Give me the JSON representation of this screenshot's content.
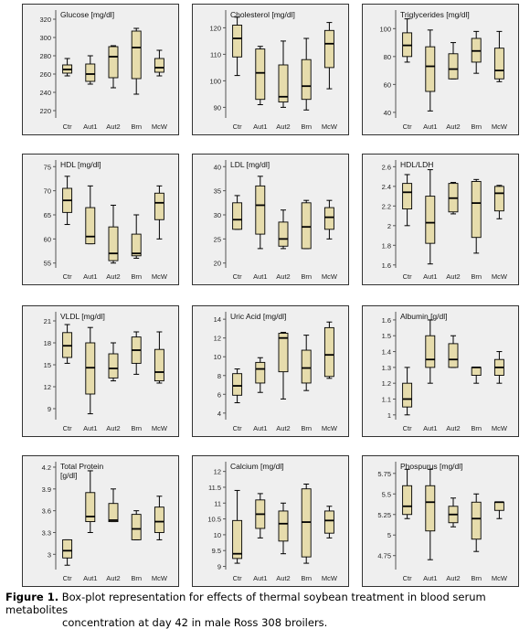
{
  "figure": {
    "caption_label": "Figure 1.",
    "caption_text_1": "Box-plot representation for effects of thermal soybean treatment in blood serum metabolites",
    "caption_text_2": "concentration at day 42 in male Ross 308 broilers."
  },
  "colors": {
    "box_fill": "#e6dcac",
    "panel_bg": "#efefef",
    "line": "#000000"
  },
  "chart_data": [
    {
      "type": "box",
      "title": "Glucose [mg/dl]",
      "categories": [
        "Ctr",
        "Aut1",
        "Aut2",
        "Brn",
        "McW"
      ],
      "yticks": [
        220,
        240,
        260,
        280,
        300,
        320
      ],
      "ylim": [
        212,
        328
      ],
      "boxes": [
        {
          "min": 258,
          "q1": 261,
          "median": 265,
          "q3": 270,
          "max": 277
        },
        {
          "min": 249,
          "q1": 252,
          "median": 260,
          "q3": 271,
          "max": 280
        },
        {
          "min": 245,
          "q1": 256,
          "median": 279,
          "q3": 290,
          "max": 291
        },
        {
          "min": 238,
          "q1": 255,
          "median": 289,
          "q3": 307,
          "max": 310
        },
        {
          "min": 258,
          "q1": 262,
          "median": 267,
          "q3": 277,
          "max": 286
        }
      ]
    },
    {
      "type": "box",
      "title": "Cholesterol [mg/dl]",
      "categories": [
        "Ctr",
        "Aut1",
        "Aut2",
        "Brn",
        "McW"
      ],
      "yticks": [
        90,
        100,
        110,
        120
      ],
      "ylim": [
        86,
        126
      ],
      "boxes": [
        {
          "min": 102,
          "q1": 109,
          "median": 116,
          "q3": 121,
          "max": 124
        },
        {
          "min": 91,
          "q1": 93,
          "median": 103,
          "q3": 112,
          "max": 113
        },
        {
          "min": 90,
          "q1": 92,
          "median": 94,
          "q3": 106,
          "max": 115
        },
        {
          "min": 89,
          "q1": 93,
          "median": 98,
          "q3": 108,
          "max": 116
        },
        {
          "min": 97,
          "q1": 105,
          "median": 114,
          "q3": 119,
          "max": 122
        }
      ]
    },
    {
      "type": "box",
      "title": "Triglycerides [mg/dl]",
      "categories": [
        "Ctr",
        "Aut1",
        "Aut2",
        "Brn",
        "McW"
      ],
      "yticks": [
        40,
        60,
        80,
        100
      ],
      "ylim": [
        36,
        112
      ],
      "boxes": [
        {
          "min": 76,
          "q1": 80,
          "median": 88,
          "q3": 97,
          "max": 107
        },
        {
          "min": 41,
          "q1": 55,
          "median": 73,
          "q3": 87,
          "max": 99
        },
        {
          "min": 64,
          "q1": 64,
          "median": 71,
          "q3": 82,
          "max": 90
        },
        {
          "min": 68,
          "q1": 76,
          "median": 84,
          "q3": 93,
          "max": 98
        },
        {
          "min": 62,
          "q1": 64,
          "median": 70,
          "q3": 86,
          "max": 98
        }
      ]
    },
    {
      "type": "box",
      "title": "HDL [mg/dl]",
      "categories": [
        "Ctr",
        "Aut1",
        "Aut2",
        "Brn",
        "McW"
      ],
      "yticks": [
        55,
        60,
        65,
        70,
        75
      ],
      "ylim": [
        54,
        76
      ],
      "boxes": [
        {
          "min": 63,
          "q1": 65.5,
          "median": 68,
          "q3": 70.5,
          "max": 73
        },
        {
          "min": 59,
          "q1": 59,
          "median": 60.5,
          "q3": 66.5,
          "max": 71
        },
        {
          "min": 55,
          "q1": 55.5,
          "median": 57,
          "q3": 62.5,
          "max": 67
        },
        {
          "min": 56,
          "q1": 56.5,
          "median": 57,
          "q3": 61,
          "max": 65
        },
        {
          "min": 60,
          "q1": 64,
          "median": 67.5,
          "q3": 69.5,
          "max": 71
        }
      ]
    },
    {
      "type": "box",
      "title": "LDL [mg/dl]",
      "categories": [
        "Ctr",
        "Aut1",
        "Aut2",
        "Brn",
        "McW"
      ],
      "yticks": [
        20,
        25,
        30,
        35,
        40
      ],
      "ylim": [
        19,
        41
      ],
      "boxes": [
        {
          "min": 27,
          "q1": 27,
          "median": 29,
          "q3": 32.5,
          "max": 34
        },
        {
          "min": 23,
          "q1": 26,
          "median": 32,
          "q3": 36,
          "max": 38
        },
        {
          "min": 23,
          "q1": 23.5,
          "median": 25,
          "q3": 28.5,
          "max": 31
        },
        {
          "min": 23,
          "q1": 23,
          "median": 27.5,
          "q3": 32.5,
          "max": 33
        },
        {
          "min": 25,
          "q1": 27,
          "median": 29.5,
          "q3": 31.5,
          "max": 33
        }
      ]
    },
    {
      "type": "box",
      "title": "HDL/LDH",
      "categories": [
        "Ctr",
        "Aut1",
        "Aut2",
        "Brn",
        "McW"
      ],
      "yticks": [
        1.6,
        1.8,
        2.0,
        2.2,
        2.4,
        2.6
      ],
      "ylim": [
        1.57,
        2.65
      ],
      "boxes": [
        {
          "min": 2.0,
          "q1": 2.17,
          "median": 2.34,
          "q3": 2.43,
          "max": 2.52
        },
        {
          "min": 1.61,
          "q1": 1.82,
          "median": 2.03,
          "q3": 2.3,
          "max": 2.57
        },
        {
          "min": 2.12,
          "q1": 2.14,
          "median": 2.28,
          "q3": 2.43,
          "max": 2.44
        },
        {
          "min": 1.72,
          "q1": 1.88,
          "median": 2.23,
          "q3": 2.45,
          "max": 2.47
        },
        {
          "min": 2.07,
          "q1": 2.15,
          "median": 2.33,
          "q3": 2.4,
          "max": 2.41
        }
      ]
    },
    {
      "type": "box",
      "title": "VLDL [mg/dl]",
      "categories": [
        "Ctr",
        "Aut1",
        "Aut2",
        "Brn",
        "McW"
      ],
      "yticks": [
        9,
        12,
        15,
        18,
        21
      ],
      "ylim": [
        7.5,
        22
      ],
      "boxes": [
        {
          "min": 15.2,
          "q1": 16,
          "median": 17.6,
          "q3": 19.4,
          "max": 20.5
        },
        {
          "min": 8.3,
          "q1": 11,
          "median": 14.6,
          "q3": 18,
          "max": 20.1
        },
        {
          "min": 12.8,
          "q1": 13.2,
          "median": 14.5,
          "q3": 16.5,
          "max": 18
        },
        {
          "min": 13.7,
          "q1": 15.2,
          "median": 17,
          "q3": 18.8,
          "max": 19.5
        },
        {
          "min": 12.5,
          "q1": 12.8,
          "median": 14,
          "q3": 17.1,
          "max": 19.5
        }
      ]
    },
    {
      "type": "box",
      "title": "Uric Acid  [mg/dl]",
      "categories": [
        "Ctr",
        "Aut1",
        "Aut2",
        "Brn",
        "McW"
      ],
      "yticks": [
        4,
        6,
        8,
        10,
        12,
        14
      ],
      "ylim": [
        3.3,
        14.6
      ],
      "boxes": [
        {
          "min": 5.1,
          "q1": 5.9,
          "median": 6.9,
          "q3": 8.2,
          "max": 8.7
        },
        {
          "min": 6.2,
          "q1": 7.2,
          "median": 8.7,
          "q3": 9.4,
          "max": 9.9
        },
        {
          "min": 5.5,
          "q1": 8.4,
          "median": 12,
          "q3": 12.5,
          "max": 12.6
        },
        {
          "min": 6.4,
          "q1": 7.2,
          "median": 8.8,
          "q3": 10.7,
          "max": 12.3
        },
        {
          "min": 7.7,
          "q1": 7.9,
          "median": 10.2,
          "q3": 13.1,
          "max": 13.7
        }
      ]
    },
    {
      "type": "box",
      "title": "Albumin [g/dl]",
      "categories": [
        "Ctr",
        "Aut1",
        "Aut2",
        "Brn",
        "McW"
      ],
      "yticks": [
        1.0,
        1.1,
        1.2,
        1.3,
        1.4,
        1.5,
        1.6
      ],
      "ylim": [
        0.97,
        1.64
      ],
      "boxes": [
        {
          "min": 1.0,
          "q1": 1.05,
          "median": 1.1,
          "q3": 1.2,
          "max": 1.3
        },
        {
          "min": 1.2,
          "q1": 1.3,
          "median": 1.35,
          "q3": 1.5,
          "max": 1.6
        },
        {
          "min": 1.3,
          "q1": 1.3,
          "median": 1.35,
          "q3": 1.45,
          "max": 1.5
        },
        {
          "min": 1.2,
          "q1": 1.25,
          "median": 1.3,
          "q3": 1.3,
          "max": 1.3
        },
        {
          "min": 1.2,
          "q1": 1.25,
          "median": 1.3,
          "q3": 1.35,
          "max": 1.4
        }
      ]
    },
    {
      "type": "box",
      "title": "Total Protein\n[g/dl]",
      "categories": [
        "Ctr",
        "Aut1",
        "Aut2",
        "Brn",
        "McW"
      ],
      "yticks": [
        3.0,
        3.3,
        3.6,
        3.9,
        4.2
      ],
      "ylim": [
        2.79,
        4.25
      ],
      "boxes": [
        {
          "min": 2.85,
          "q1": 2.95,
          "median": 3.05,
          "q3": 3.2,
          "max": 3.2
        },
        {
          "min": 3.3,
          "q1": 3.45,
          "median": 3.52,
          "q3": 3.85,
          "max": 4.15
        },
        {
          "min": 3.45,
          "q1": 3.45,
          "median": 3.47,
          "q3": 3.7,
          "max": 3.9
        },
        {
          "min": 3.2,
          "q1": 3.2,
          "median": 3.35,
          "q3": 3.55,
          "max": 3.6
        },
        {
          "min": 3.2,
          "q1": 3.3,
          "median": 3.45,
          "q3": 3.65,
          "max": 3.8
        }
      ]
    },
    {
      "type": "box",
      "title": "Calcium  [mg/dl]",
      "categories": [
        "Ctr",
        "Aut1",
        "Aut2",
        "Brn",
        "McW"
      ],
      "yticks": [
        9.0,
        9.5,
        10.0,
        10.5,
        11.0,
        11.5,
        12.0
      ],
      "ylim": [
        8.9,
        12.25
      ],
      "boxes": [
        {
          "min": 9.1,
          "q1": 9.25,
          "median": 9.4,
          "q3": 10.45,
          "max": 11.4
        },
        {
          "min": 9.9,
          "q1": 10.2,
          "median": 10.65,
          "q3": 11.1,
          "max": 11.3
        },
        {
          "min": 9.4,
          "q1": 9.8,
          "median": 10.35,
          "q3": 10.75,
          "max": 11.0
        },
        {
          "min": 9.1,
          "q1": 9.3,
          "median": 10.4,
          "q3": 11.45,
          "max": 11.6
        },
        {
          "min": 9.9,
          "q1": 10.05,
          "median": 10.45,
          "q3": 10.75,
          "max": 10.9
        }
      ]
    },
    {
      "type": "box",
      "title": "Phospurus [mg/dl]",
      "categories": [
        "Ctr",
        "Aut1",
        "Aut2",
        "Brn",
        "McW"
      ],
      "yticks": [
        4.75,
        5.0,
        5.25,
        5.5,
        5.75
      ],
      "ylim": [
        4.58,
        5.87
      ],
      "boxes": [
        {
          "min": 5.2,
          "q1": 5.25,
          "median": 5.35,
          "q3": 5.6,
          "max": 5.8
        },
        {
          "min": 4.7,
          "q1": 5.05,
          "median": 5.4,
          "q3": 5.6,
          "max": 5.8
        },
        {
          "min": 5.1,
          "q1": 5.15,
          "median": 5.25,
          "q3": 5.35,
          "max": 5.45
        },
        {
          "min": 4.8,
          "q1": 4.95,
          "median": 5.2,
          "q3": 5.4,
          "max": 5.5
        },
        {
          "min": 5.2,
          "q1": 5.3,
          "median": 5.4,
          "q3": 5.4,
          "max": 5.4
        }
      ]
    }
  ]
}
